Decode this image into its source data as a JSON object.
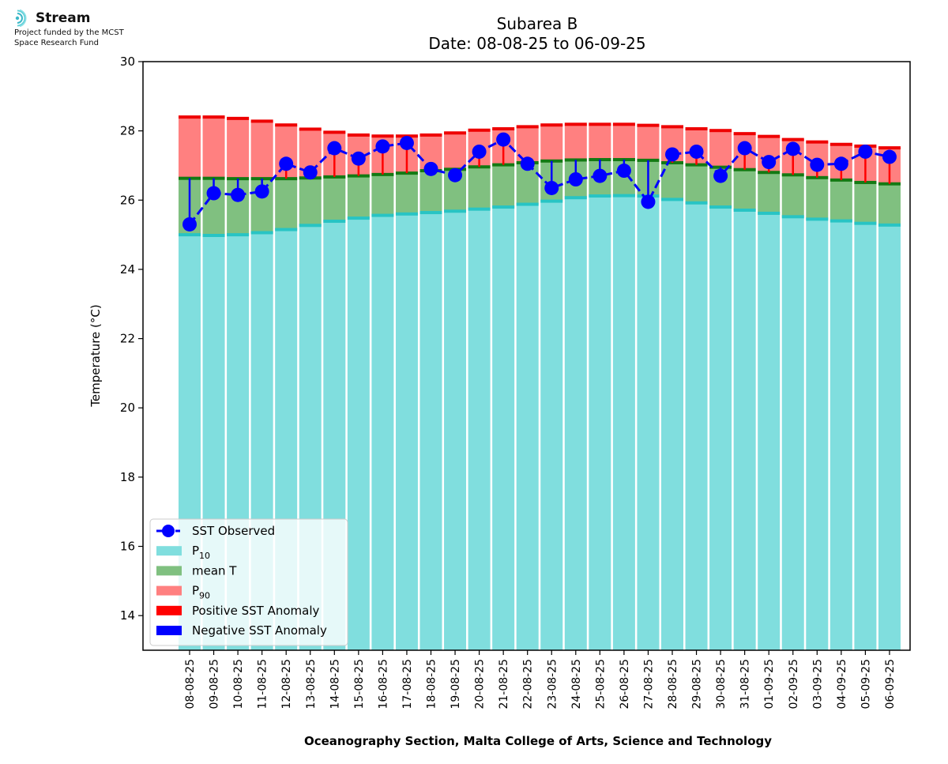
{
  "header": {
    "logo_name": "Stream",
    "funding_text": [
      "Project funded by the MCST",
      "Space Research Fund"
    ]
  },
  "footer": {
    "credit": "Oceanography Section, Malta College of Arts, Science and Technology"
  },
  "chart_data": {
    "type": "bar",
    "title": "Subarea B",
    "subtitle": "Date: 08-08-25 to 06-09-25",
    "xlabel": "",
    "ylabel": "Temperature (°C)",
    "ylim": [
      13,
      30
    ],
    "yticks": [
      14,
      16,
      18,
      20,
      22,
      24,
      26,
      28,
      30
    ],
    "grid": false,
    "legend_position": "lower-left",
    "categories": [
      "08-08-25",
      "09-08-25",
      "10-08-25",
      "11-08-25",
      "12-08-25",
      "13-08-25",
      "14-08-25",
      "15-08-25",
      "16-08-25",
      "17-08-25",
      "18-08-25",
      "19-08-25",
      "20-08-25",
      "21-08-25",
      "22-08-25",
      "23-08-25",
      "24-08-25",
      "25-08-25",
      "26-08-25",
      "27-08-25",
      "28-08-25",
      "29-08-25",
      "30-08-25",
      "31-08-25",
      "01-09-25",
      "02-09-25",
      "03-09-25",
      "04-09-25",
      "05-09-25",
      "06-09-25"
    ],
    "series": [
      {
        "name": "P10",
        "legend_sub": "10",
        "color": "#80dede",
        "edge_color": "#28c4c4",
        "values": [
          25.0,
          24.98,
          25.0,
          25.06,
          25.15,
          25.27,
          25.39,
          25.48,
          25.56,
          25.6,
          25.64,
          25.68,
          25.74,
          25.8,
          25.88,
          25.97,
          26.07,
          26.12,
          26.13,
          26.12,
          26.02,
          25.92,
          25.8,
          25.71,
          25.62,
          25.52,
          25.45,
          25.4,
          25.33,
          25.28
        ]
      },
      {
        "name": "mean T",
        "color": "#80c080",
        "edge_color": "#137a13",
        "values": [
          26.63,
          26.63,
          26.62,
          26.62,
          26.62,
          26.64,
          26.67,
          26.7,
          26.74,
          26.78,
          26.85,
          26.89,
          26.96,
          27.02,
          27.08,
          27.13,
          27.16,
          27.17,
          27.17,
          27.15,
          27.08,
          27.02,
          26.95,
          26.88,
          26.8,
          26.73,
          26.65,
          26.58,
          26.51,
          26.47
        ]
      },
      {
        "name": "P90",
        "legend_sub": "90",
        "color": "#ff8080",
        "edge_color": "#ee0000",
        "values": [
          28.4,
          28.4,
          28.36,
          28.28,
          28.17,
          28.05,
          27.96,
          27.88,
          27.85,
          27.85,
          27.88,
          27.94,
          28.02,
          28.06,
          28.12,
          28.17,
          28.19,
          28.19,
          28.19,
          28.16,
          28.12,
          28.06,
          28.01,
          27.92,
          27.84,
          27.75,
          27.68,
          27.61,
          27.56,
          27.51
        ]
      },
      {
        "name": "SST Observed",
        "color": "#0000ff",
        "values": [
          25.3,
          26.2,
          26.15,
          26.25,
          27.05,
          26.8,
          27.5,
          27.2,
          27.55,
          27.65,
          26.9,
          26.72,
          27.4,
          27.75,
          27.05,
          26.35,
          26.6,
          26.7,
          26.85,
          25.95,
          27.32,
          27.4,
          26.7,
          27.5,
          27.1,
          27.48,
          27.02,
          27.05,
          27.4,
          27.25
        ]
      }
    ],
    "anomaly_legend": [
      {
        "name": "Positive SST Anomaly",
        "color": "#ff0000"
      },
      {
        "name": "Negative SST Anomaly",
        "color": "#0000ff"
      }
    ]
  }
}
